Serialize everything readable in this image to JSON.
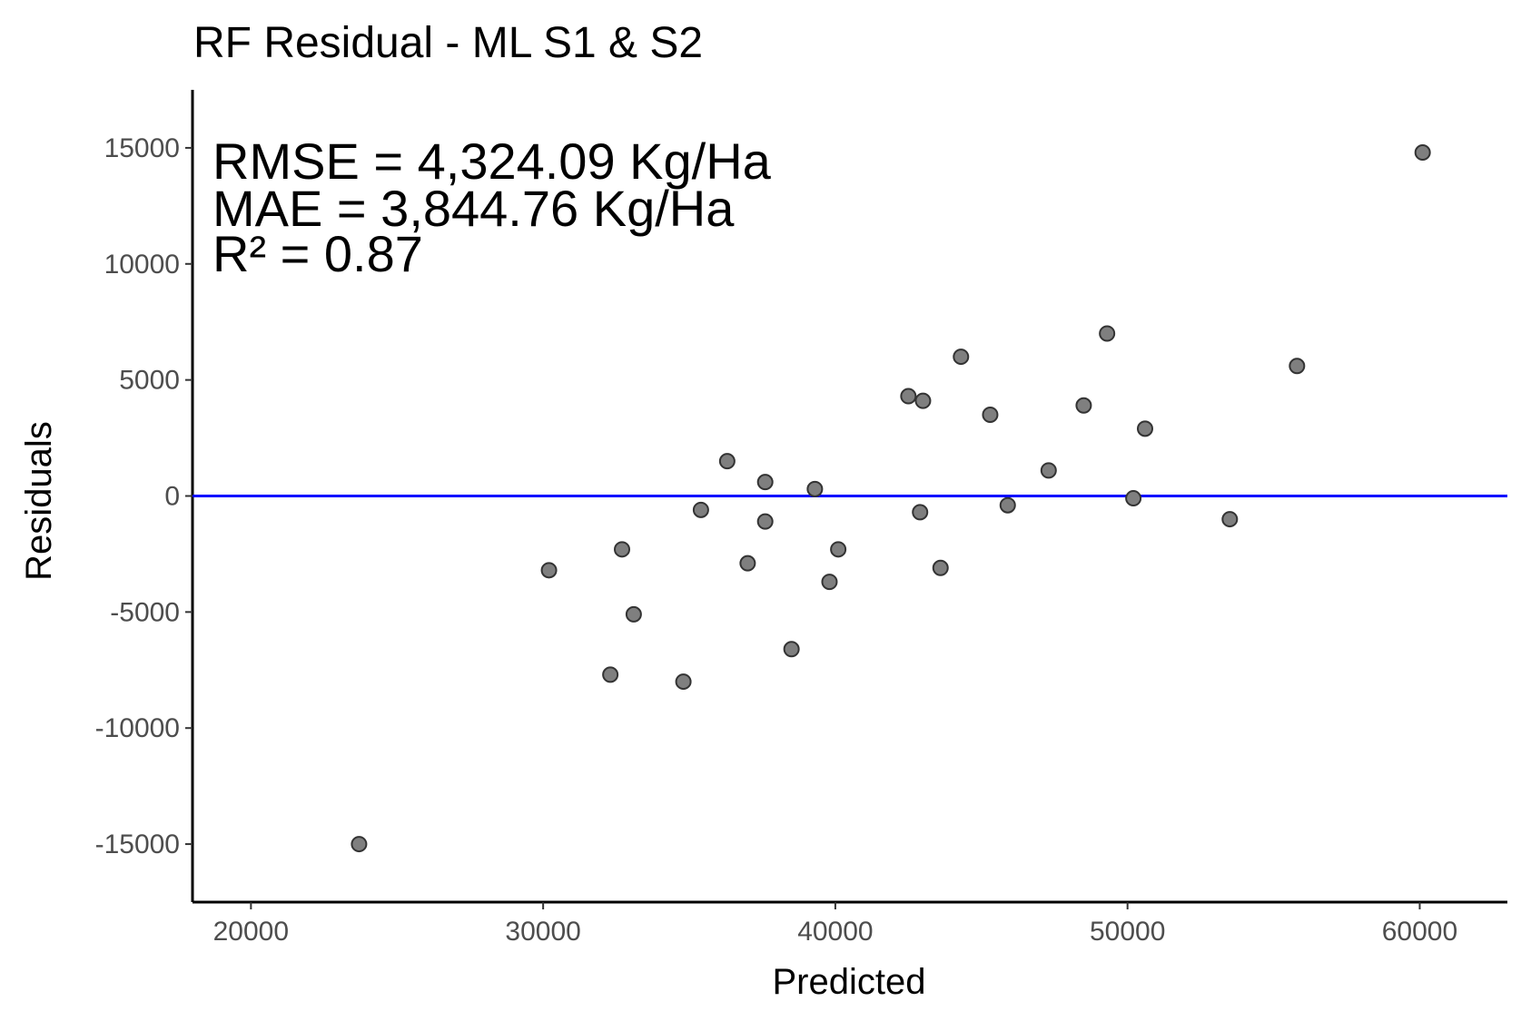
{
  "chart_data": {
    "type": "scatter",
    "title": "RF Residual - ML S1 & S2",
    "xlabel": "Predicted",
    "ylabel": "Residuals",
    "xlim": [
      18000,
      63000
    ],
    "ylim": [
      -17500,
      17500
    ],
    "x_ticks": [
      20000,
      30000,
      40000,
      50000,
      60000
    ],
    "x_tick_labels": [
      "20000",
      "30000",
      "40000",
      "50000",
      "60000"
    ],
    "y_ticks": [
      -15000,
      -10000,
      -5000,
      0,
      5000,
      10000,
      15000
    ],
    "y_tick_labels": [
      "-15000",
      "-10000",
      "-5000",
      "0",
      "5000",
      "10000",
      "15000"
    ],
    "grid": false,
    "reference_line": {
      "y": 0,
      "color": "#0000ff"
    },
    "point_color": "#7f7f7f",
    "point_edge_color": "#333333",
    "annotations": [
      "RMSE = 4,324.09 Kg/Ha",
      "MAE = 3,844.76 Kg/Ha",
      "R² = 0.87"
    ],
    "series": [
      {
        "points": [
          {
            "x": 23700,
            "y": -15000
          },
          {
            "x": 30200,
            "y": -3200
          },
          {
            "x": 32300,
            "y": -7700
          },
          {
            "x": 32700,
            "y": -2300
          },
          {
            "x": 33100,
            "y": -5100
          },
          {
            "x": 34800,
            "y": -8000
          },
          {
            "x": 35400,
            "y": -600
          },
          {
            "x": 36300,
            "y": 1500
          },
          {
            "x": 37000,
            "y": -2900
          },
          {
            "x": 37600,
            "y": 600
          },
          {
            "x": 37600,
            "y": -1100
          },
          {
            "x": 38500,
            "y": -6600
          },
          {
            "x": 39300,
            "y": 300
          },
          {
            "x": 39800,
            "y": -3700
          },
          {
            "x": 40100,
            "y": -2300
          },
          {
            "x": 42500,
            "y": 4300
          },
          {
            "x": 42900,
            "y": -700
          },
          {
            "x": 43000,
            "y": 4100
          },
          {
            "x": 43600,
            "y": -3100
          },
          {
            "x": 44300,
            "y": 6000
          },
          {
            "x": 45300,
            "y": 3500
          },
          {
            "x": 45900,
            "y": -400
          },
          {
            "x": 47300,
            "y": 1100
          },
          {
            "x": 48500,
            "y": 3900
          },
          {
            "x": 49300,
            "y": 7000
          },
          {
            "x": 50200,
            "y": -100
          },
          {
            "x": 50600,
            "y": 2900
          },
          {
            "x": 53500,
            "y": -1000
          },
          {
            "x": 55800,
            "y": 5600
          },
          {
            "x": 60100,
            "y": 14800
          }
        ]
      }
    ]
  }
}
